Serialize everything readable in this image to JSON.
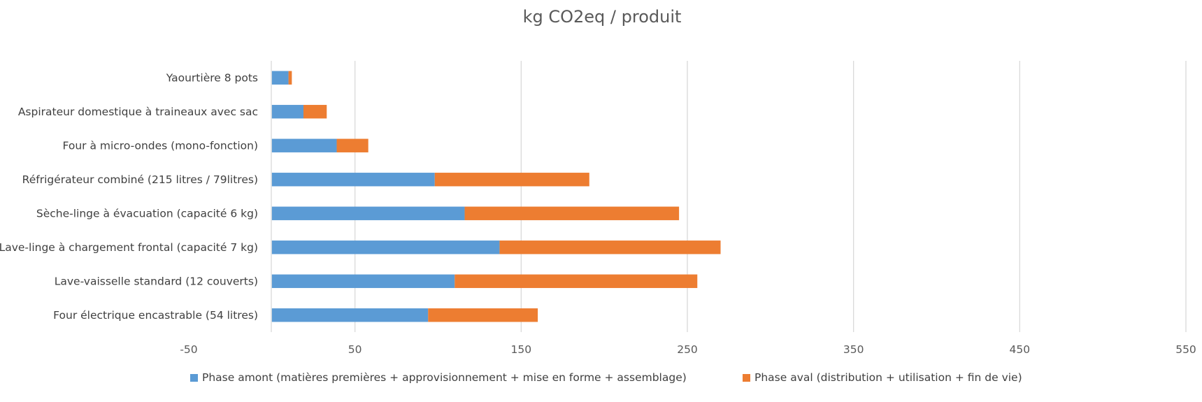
{
  "chart_data": {
    "type": "bar",
    "orientation": "horizontal",
    "stacked": true,
    "title": "kg CO2eq / produit",
    "categories": [
      "Yaourtière 8 pots",
      "Aspirateur domestique à traineaux avec sac",
      "Four à micro-ondes (mono-fonction)",
      "Réfrigérateur combiné (215 litres / 79litres)",
      "Sèche-linge à évacuation (capacité 6 kg)",
      "Lave-linge à chargement frontal (capacité 7 kg)",
      "Lave-vaisselle standard (12 couverts)",
      "Four électrique encastrable (54 litres)"
    ],
    "series": [
      {
        "name": "Phase amont (matières premières + approvisionnement + mise en forme + assemblage)",
        "color": "#5b9bd5",
        "values": [
          10,
          19,
          39,
          98,
          116,
          137,
          110,
          94
        ]
      },
      {
        "name": "Phase aval (distribution + utilisation + fin de vie)",
        "color": "#ed7d31",
        "values": [
          2,
          14,
          19,
          93,
          129,
          133,
          146,
          66
        ]
      }
    ],
    "xlim": [
      -50,
      550
    ],
    "xticks": [
      "-50",
      "50",
      "150",
      "250",
      "350",
      "450",
      "550"
    ],
    "grid": true,
    "legend_position": "bottom"
  }
}
